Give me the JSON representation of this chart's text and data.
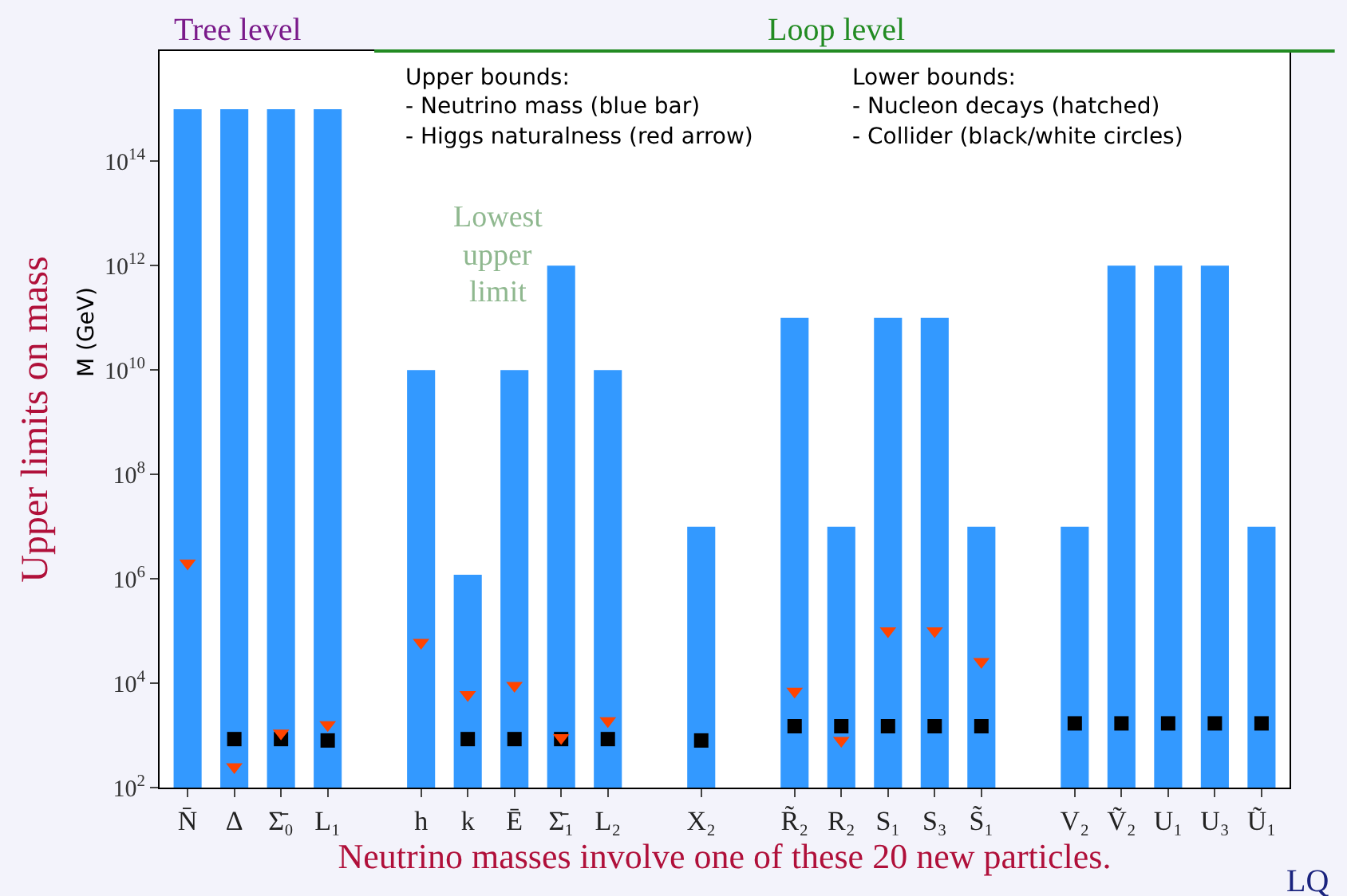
{
  "chart_data": {
    "type": "bar",
    "ylabel": "Upper limits on mass",
    "xlabel": "Neutrino masses involve one of these 20 new particles.",
    "categories": [
      "N̄",
      "Δ",
      "Σ̄₀",
      "L₁",
      null,
      "h",
      "k",
      "Ē",
      "Σ̄₁",
      "L₂",
      null,
      "X₂",
      null,
      "R̃₂",
      "R₂",
      "S₁",
      "S₃",
      "S̃₁",
      null,
      "V₂",
      "Ṽ₂",
      "U₁",
      "U₃",
      "Ũ₁"
    ],
    "series": [
      {
        "color": "#3399ff",
        "values": [
          1000000000000000.0,
          1000000000000000.0,
          1000000000000000.0,
          1000000000000000.0,
          null,
          10000000000.0,
          1200000.0,
          10000000000.0,
          1000000000000.0,
          10000000000.0,
          null,
          10000000.0,
          null,
          100000000000.0,
          10000000.0,
          100000000000.0,
          100000000000.0,
          10000000.0,
          null,
          10000000.0,
          1000000000000.0,
          1000000000000.0,
          1000000000000.0,
          10000000.0
        ]
      },
      {
        "type": "scatter",
        "color": "#000000",
        "marker": "square",
        "values": [
          null,
          850,
          850,
          800,
          null,
          null,
          850,
          850,
          850,
          850,
          null,
          800,
          null,
          1500,
          1500,
          1500,
          1500,
          1500,
          null,
          1700,
          1700,
          1700,
          1700,
          1700
        ]
      },
      {
        "type": "scatter",
        "color": "#ff4400",
        "marker": "triangle",
        "values": [
          2000000.0,
          250,
          1100,
          1600,
          null,
          60000.0,
          6000,
          9000,
          900,
          1900,
          null,
          null,
          null,
          7000,
          800,
          100000.0,
          100000.0,
          26000.0,
          null,
          null,
          null,
          null,
          null,
          null
        ]
      }
    ],
    "log": true,
    "ylim": [
      100,
      1.3e+16
    ],
    "yticks": [
      {
        "value": 100,
        "label": "10$^{2}$"
      },
      {
        "value": 10000,
        "label": "10$^{4}$"
      },
      {
        "value": 1000000,
        "label": "10$^{6}$"
      },
      {
        "value": 100000000,
        "label": "10$^{8}$"
      },
      {
        "value": 10000000000,
        "label": "10$^{10}$"
      },
      {
        "value": 1000000000000,
        "label": "10$^{12}$"
      },
      {
        "value": 100000000000000,
        "label": "10$^{14}$"
      }
    ],
    "annotations": [
      "Tree level",
      "Loop level",
      "Upper bounds:",
      "- Neutrino mass (blue bar)",
      "- Higgs naturalness (red arrow)",
      "Lower bounds:",
      "- Nucleon decays (hatched)",
      "- Collider (black/white circles)",
      "Lowest",
      "upper",
      "limit",
      "M (GeV)",
      "LQ"
    ]
  }
}
